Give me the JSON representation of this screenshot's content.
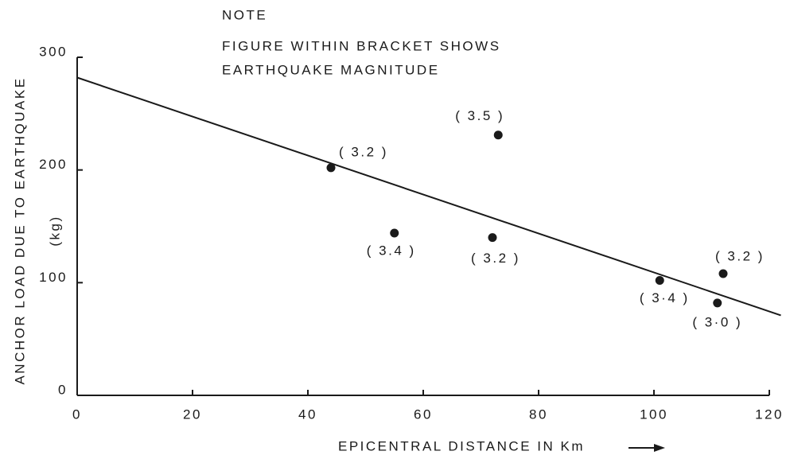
{
  "chart_data": {
    "type": "scatter",
    "note": [
      "NOTE",
      "FIGURE WITHIN BRACKET SHOWS",
      "EARTHQUAKE MAGNITUDE"
    ],
    "x_label": "EPICENTRAL DISTANCE  IN  Km",
    "y_label": "ANCHOR LOAD DUE TO EARTHQUAKE",
    "y_unit": "(kg)",
    "x": [
      44,
      73,
      55,
      72,
      101,
      112,
      111
    ],
    "values": [
      202,
      231,
      144,
      140,
      102,
      108,
      82
    ],
    "point_labels": [
      "( 3.2 )",
      "( 3.5 )",
      "( 3.4 )",
      "( 3.2 )",
      "( 3·4 )",
      "( 3.2 )",
      "( 3·0 )"
    ],
    "color": "#1a1a1a",
    "trend": {
      "x": [
        0,
        122
      ],
      "values": [
        282,
        71
      ]
    },
    "xlim": [
      0,
      120
    ],
    "ylim": [
      0,
      300
    ],
    "xticks": [
      0,
      20,
      40,
      60,
      80,
      100,
      120
    ],
    "yticks": [
      0,
      100,
      200,
      300
    ]
  }
}
